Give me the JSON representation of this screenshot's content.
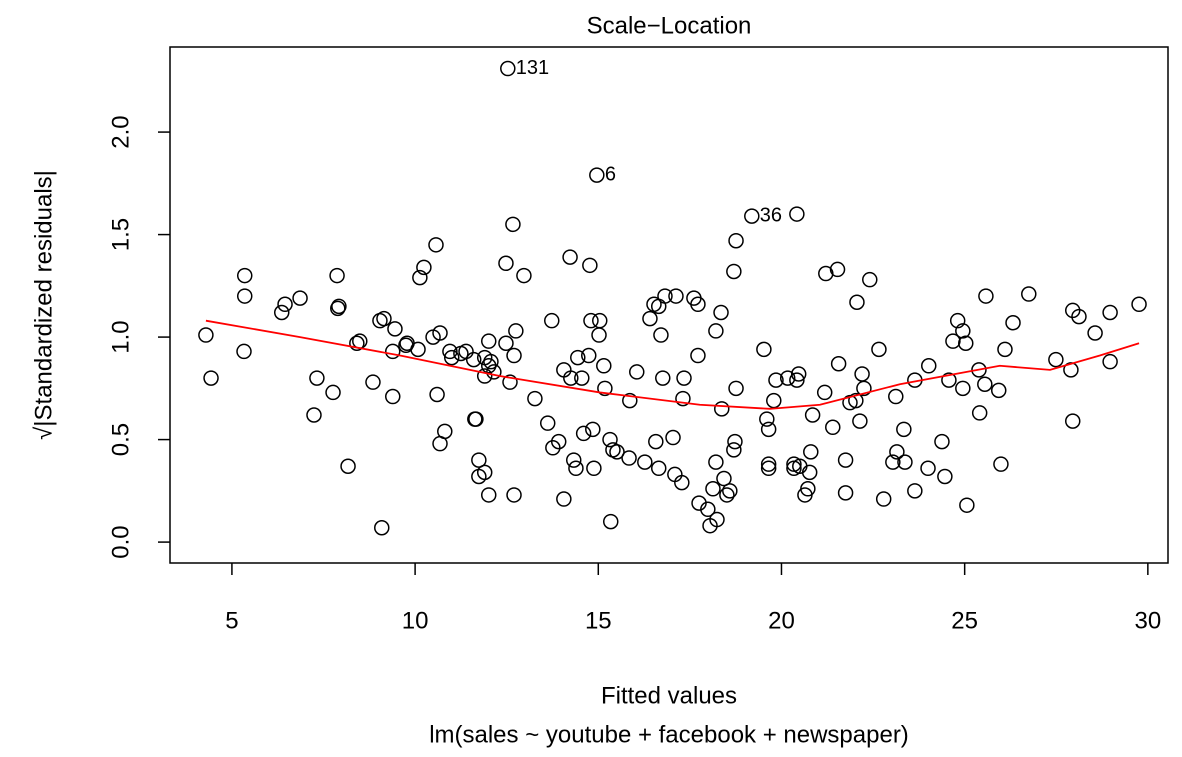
{
  "chart_data": {
    "type": "scatter",
    "title": "Scale−Location",
    "x_label": "Fitted values",
    "subtitle": "lm(sales ~ youtube + facebook + newspaper)",
    "y_label": "√|Standardized residuals|",
    "xlim": [
      3.31,
      30.55
    ],
    "ylim": [
      -0.102,
      2.415
    ],
    "xticks": [
      5,
      10,
      15,
      20,
      25,
      30
    ],
    "yticks": [
      {
        "value": 0,
        "label": "0.0"
      },
      0.5,
      {
        "value": 1,
        "label": "1.0"
      },
      1.5,
      {
        "value": 2,
        "label": "2.0"
      }
    ],
    "point_color": "#000000",
    "line_color": "#ff0000",
    "points": [
      {
        "x": 12.53,
        "y": 2.31,
        "label": "131"
      },
      {
        "x": 14.96,
        "y": 1.79,
        "label": "6"
      },
      {
        "x": 19.19,
        "y": 1.59,
        "label": "36"
      },
      {
        "x": 4.29,
        "y": 1.01
      },
      {
        "x": 4.43,
        "y": 0.8
      },
      {
        "x": 5.35,
        "y": 1.3
      },
      {
        "x": 5.35,
        "y": 1.2
      },
      {
        "x": 5.33,
        "y": 0.93
      },
      {
        "x": 6.36,
        "y": 1.12
      },
      {
        "x": 6.45,
        "y": 1.16
      },
      {
        "x": 6.86,
        "y": 1.19
      },
      {
        "x": 7.32,
        "y": 0.8
      },
      {
        "x": 7.24,
        "y": 0.62
      },
      {
        "x": 7.76,
        "y": 0.73
      },
      {
        "x": 7.87,
        "y": 1.3
      },
      {
        "x": 7.89,
        "y": 1.14
      },
      {
        "x": 7.92,
        "y": 1.15
      },
      {
        "x": 8.17,
        "y": 0.37
      },
      {
        "x": 8.41,
        "y": 0.97
      },
      {
        "x": 8.49,
        "y": 0.98
      },
      {
        "x": 8.85,
        "y": 0.78
      },
      {
        "x": 9.04,
        "y": 1.08
      },
      {
        "x": 9.15,
        "y": 1.09
      },
      {
        "x": 9.09,
        "y": 0.07
      },
      {
        "x": 9.39,
        "y": 0.93
      },
      {
        "x": 9.39,
        "y": 0.71
      },
      {
        "x": 9.45,
        "y": 1.04
      },
      {
        "x": 9.75,
        "y": 0.96
      },
      {
        "x": 9.78,
        "y": 0.97
      },
      {
        "x": 10.08,
        "y": 0.94
      },
      {
        "x": 10.13,
        "y": 1.29
      },
      {
        "x": 10.24,
        "y": 1.34
      },
      {
        "x": 10.49,
        "y": 1.0
      },
      {
        "x": 10.57,
        "y": 1.45
      },
      {
        "x": 10.6,
        "y": 0.72
      },
      {
        "x": 10.68,
        "y": 1.02
      },
      {
        "x": 10.68,
        "y": 0.48
      },
      {
        "x": 10.81,
        "y": 0.54
      },
      {
        "x": 10.95,
        "y": 0.93
      },
      {
        "x": 11.0,
        "y": 0.9
      },
      {
        "x": 11.25,
        "y": 0.92
      },
      {
        "x": 11.39,
        "y": 0.93
      },
      {
        "x": 11.6,
        "y": 0.89
      },
      {
        "x": 11.63,
        "y": 0.6
      },
      {
        "x": 11.66,
        "y": 0.6
      },
      {
        "x": 11.74,
        "y": 0.4
      },
      {
        "x": 11.74,
        "y": 0.32
      },
      {
        "x": 11.9,
        "y": 0.9
      },
      {
        "x": 11.9,
        "y": 0.81
      },
      {
        "x": 11.9,
        "y": 0.34
      },
      {
        "x": 12.01,
        "y": 0.98
      },
      {
        "x": 12.01,
        "y": 0.86
      },
      {
        "x": 12.07,
        "y": 0.88
      },
      {
        "x": 12.01,
        "y": 0.23
      },
      {
        "x": 12.15,
        "y": 0.83
      },
      {
        "x": 12.48,
        "y": 1.36
      },
      {
        "x": 12.48,
        "y": 0.97
      },
      {
        "x": 12.59,
        "y": 0.78
      },
      {
        "x": 12.67,
        "y": 1.55
      },
      {
        "x": 12.7,
        "y": 0.91
      },
      {
        "x": 12.75,
        "y": 1.03
      },
      {
        "x": 12.7,
        "y": 0.23
      },
      {
        "x": 12.97,
        "y": 1.3
      },
      {
        "x": 13.27,
        "y": 0.7
      },
      {
        "x": 13.62,
        "y": 0.58
      },
      {
        "x": 13.73,
        "y": 1.08
      },
      {
        "x": 13.76,
        "y": 0.46
      },
      {
        "x": 13.92,
        "y": 0.49
      },
      {
        "x": 14.06,
        "y": 0.84
      },
      {
        "x": 14.06,
        "y": 0.21
      },
      {
        "x": 14.23,
        "y": 1.39
      },
      {
        "x": 14.25,
        "y": 0.8
      },
      {
        "x": 14.33,
        "y": 0.4
      },
      {
        "x": 14.39,
        "y": 0.36
      },
      {
        "x": 14.44,
        "y": 0.9
      },
      {
        "x": 14.55,
        "y": 0.8
      },
      {
        "x": 14.6,
        "y": 0.53
      },
      {
        "x": 14.74,
        "y": 0.91
      },
      {
        "x": 14.77,
        "y": 1.35
      },
      {
        "x": 14.8,
        "y": 1.08
      },
      {
        "x": 14.85,
        "y": 0.55
      },
      {
        "x": 14.88,
        "y": 0.36
      },
      {
        "x": 15.02,
        "y": 1.01
      },
      {
        "x": 15.04,
        "y": 1.08
      },
      {
        "x": 15.15,
        "y": 0.86
      },
      {
        "x": 15.18,
        "y": 0.75
      },
      {
        "x": 15.32,
        "y": 0.5
      },
      {
        "x": 15.34,
        "y": 0.1
      },
      {
        "x": 15.4,
        "y": 0.45
      },
      {
        "x": 15.51,
        "y": 0.44
      },
      {
        "x": 15.84,
        "y": 0.41
      },
      {
        "x": 15.86,
        "y": 0.69
      },
      {
        "x": 16.05,
        "y": 0.83
      },
      {
        "x": 16.27,
        "y": 0.39
      },
      {
        "x": 16.41,
        "y": 1.09
      },
      {
        "x": 16.52,
        "y": 1.16
      },
      {
        "x": 16.57,
        "y": 0.49
      },
      {
        "x": 16.65,
        "y": 1.15
      },
      {
        "x": 16.71,
        "y": 1.01
      },
      {
        "x": 16.65,
        "y": 0.36
      },
      {
        "x": 16.76,
        "y": 0.8
      },
      {
        "x": 16.82,
        "y": 1.2
      },
      {
        "x": 17.04,
        "y": 0.51
      },
      {
        "x": 17.09,
        "y": 0.33
      },
      {
        "x": 17.12,
        "y": 1.2
      },
      {
        "x": 17.28,
        "y": 0.29
      },
      {
        "x": 17.31,
        "y": 0.7
      },
      {
        "x": 17.34,
        "y": 0.8
      },
      {
        "x": 17.61,
        "y": 1.19
      },
      {
        "x": 17.72,
        "y": 1.16
      },
      {
        "x": 17.72,
        "y": 0.91
      },
      {
        "x": 17.75,
        "y": 0.19
      },
      {
        "x": 17.99,
        "y": 0.16
      },
      {
        "x": 18.05,
        "y": 0.08
      },
      {
        "x": 18.13,
        "y": 0.26
      },
      {
        "x": 18.21,
        "y": 0.39
      },
      {
        "x": 18.21,
        "y": 1.03
      },
      {
        "x": 18.24,
        "y": 0.11
      },
      {
        "x": 18.35,
        "y": 1.12
      },
      {
        "x": 18.37,
        "y": 0.65
      },
      {
        "x": 18.43,
        "y": 0.31
      },
      {
        "x": 18.51,
        "y": 0.23
      },
      {
        "x": 18.59,
        "y": 0.25
      },
      {
        "x": 18.7,
        "y": 0.45
      },
      {
        "x": 18.7,
        "y": 1.32
      },
      {
        "x": 18.73,
        "y": 0.49
      },
      {
        "x": 18.76,
        "y": 1.47
      },
      {
        "x": 18.76,
        "y": 0.75
      },
      {
        "x": 19.52,
        "y": 0.94
      },
      {
        "x": 19.6,
        "y": 0.6
      },
      {
        "x": 19.65,
        "y": 0.55
      },
      {
        "x": 19.65,
        "y": 0.38
      },
      {
        "x": 19.65,
        "y": 0.36
      },
      {
        "x": 19.79,
        "y": 0.69
      },
      {
        "x": 19.85,
        "y": 0.79
      },
      {
        "x": 20.17,
        "y": 0.8
      },
      {
        "x": 20.34,
        "y": 0.38
      },
      {
        "x": 20.34,
        "y": 0.36
      },
      {
        "x": 20.42,
        "y": 1.6
      },
      {
        "x": 20.42,
        "y": 0.79
      },
      {
        "x": 20.47,
        "y": 0.82
      },
      {
        "x": 20.5,
        "y": 0.37
      },
      {
        "x": 20.64,
        "y": 0.23
      },
      {
        "x": 20.72,
        "y": 0.26
      },
      {
        "x": 20.77,
        "y": 0.34
      },
      {
        "x": 20.8,
        "y": 0.44
      },
      {
        "x": 20.85,
        "y": 0.62
      },
      {
        "x": 21.18,
        "y": 0.73
      },
      {
        "x": 21.21,
        "y": 1.31
      },
      {
        "x": 21.4,
        "y": 0.56
      },
      {
        "x": 21.53,
        "y": 1.33
      },
      {
        "x": 21.56,
        "y": 0.87
      },
      {
        "x": 21.75,
        "y": 0.4
      },
      {
        "x": 21.75,
        "y": 0.24
      },
      {
        "x": 21.87,
        "y": 0.68
      },
      {
        "x": 22.06,
        "y": 1.17
      },
      {
        "x": 22.03,
        "y": 0.69
      },
      {
        "x": 22.14,
        "y": 0.59
      },
      {
        "x": 22.2,
        "y": 0.82
      },
      {
        "x": 22.25,
        "y": 0.75
      },
      {
        "x": 22.41,
        "y": 1.28
      },
      {
        "x": 22.66,
        "y": 0.94
      },
      {
        "x": 22.79,
        "y": 0.21
      },
      {
        "x": 23.04,
        "y": 0.39
      },
      {
        "x": 23.12,
        "y": 0.71
      },
      {
        "x": 23.15,
        "y": 0.44
      },
      {
        "x": 23.34,
        "y": 0.55
      },
      {
        "x": 23.37,
        "y": 0.39
      },
      {
        "x": 23.64,
        "y": 0.25
      },
      {
        "x": 23.64,
        "y": 0.79
      },
      {
        "x": 24.0,
        "y": 0.36
      },
      {
        "x": 24.02,
        "y": 0.86
      },
      {
        "x": 24.38,
        "y": 0.49
      },
      {
        "x": 24.46,
        "y": 0.32
      },
      {
        "x": 24.57,
        "y": 0.79
      },
      {
        "x": 24.68,
        "y": 0.98
      },
      {
        "x": 24.81,
        "y": 1.08
      },
      {
        "x": 24.95,
        "y": 1.03
      },
      {
        "x": 24.95,
        "y": 0.75
      },
      {
        "x": 25.03,
        "y": 0.97
      },
      {
        "x": 25.06,
        "y": 0.18
      },
      {
        "x": 25.39,
        "y": 0.84
      },
      {
        "x": 25.41,
        "y": 0.63
      },
      {
        "x": 25.55,
        "y": 0.77
      },
      {
        "x": 25.58,
        "y": 1.2
      },
      {
        "x": 25.93,
        "y": 0.74
      },
      {
        "x": 25.99,
        "y": 0.38
      },
      {
        "x": 26.1,
        "y": 0.94
      },
      {
        "x": 26.32,
        "y": 1.07
      },
      {
        "x": 26.75,
        "y": 1.21
      },
      {
        "x": 27.49,
        "y": 0.89
      },
      {
        "x": 27.9,
        "y": 0.84
      },
      {
        "x": 27.95,
        "y": 1.13
      },
      {
        "x": 27.95,
        "y": 0.59
      },
      {
        "x": 28.12,
        "y": 1.1
      },
      {
        "x": 28.56,
        "y": 1.02
      },
      {
        "x": 28.97,
        "y": 1.12
      },
      {
        "x": 28.97,
        "y": 0.88
      },
      {
        "x": 29.76,
        "y": 1.16
      }
    ],
    "smooth": {
      "x": [
        4.29,
        6.86,
        9.59,
        12.31,
        15.04,
        17.77,
        19.68,
        21.05,
        23.23,
        25.96,
        27.33,
        28.69,
        29.76
      ],
      "y": [
        1.08,
        1.0,
        0.91,
        0.81,
        0.73,
        0.67,
        0.65,
        0.67,
        0.77,
        0.86,
        0.84,
        0.91,
        0.97
      ]
    }
  }
}
